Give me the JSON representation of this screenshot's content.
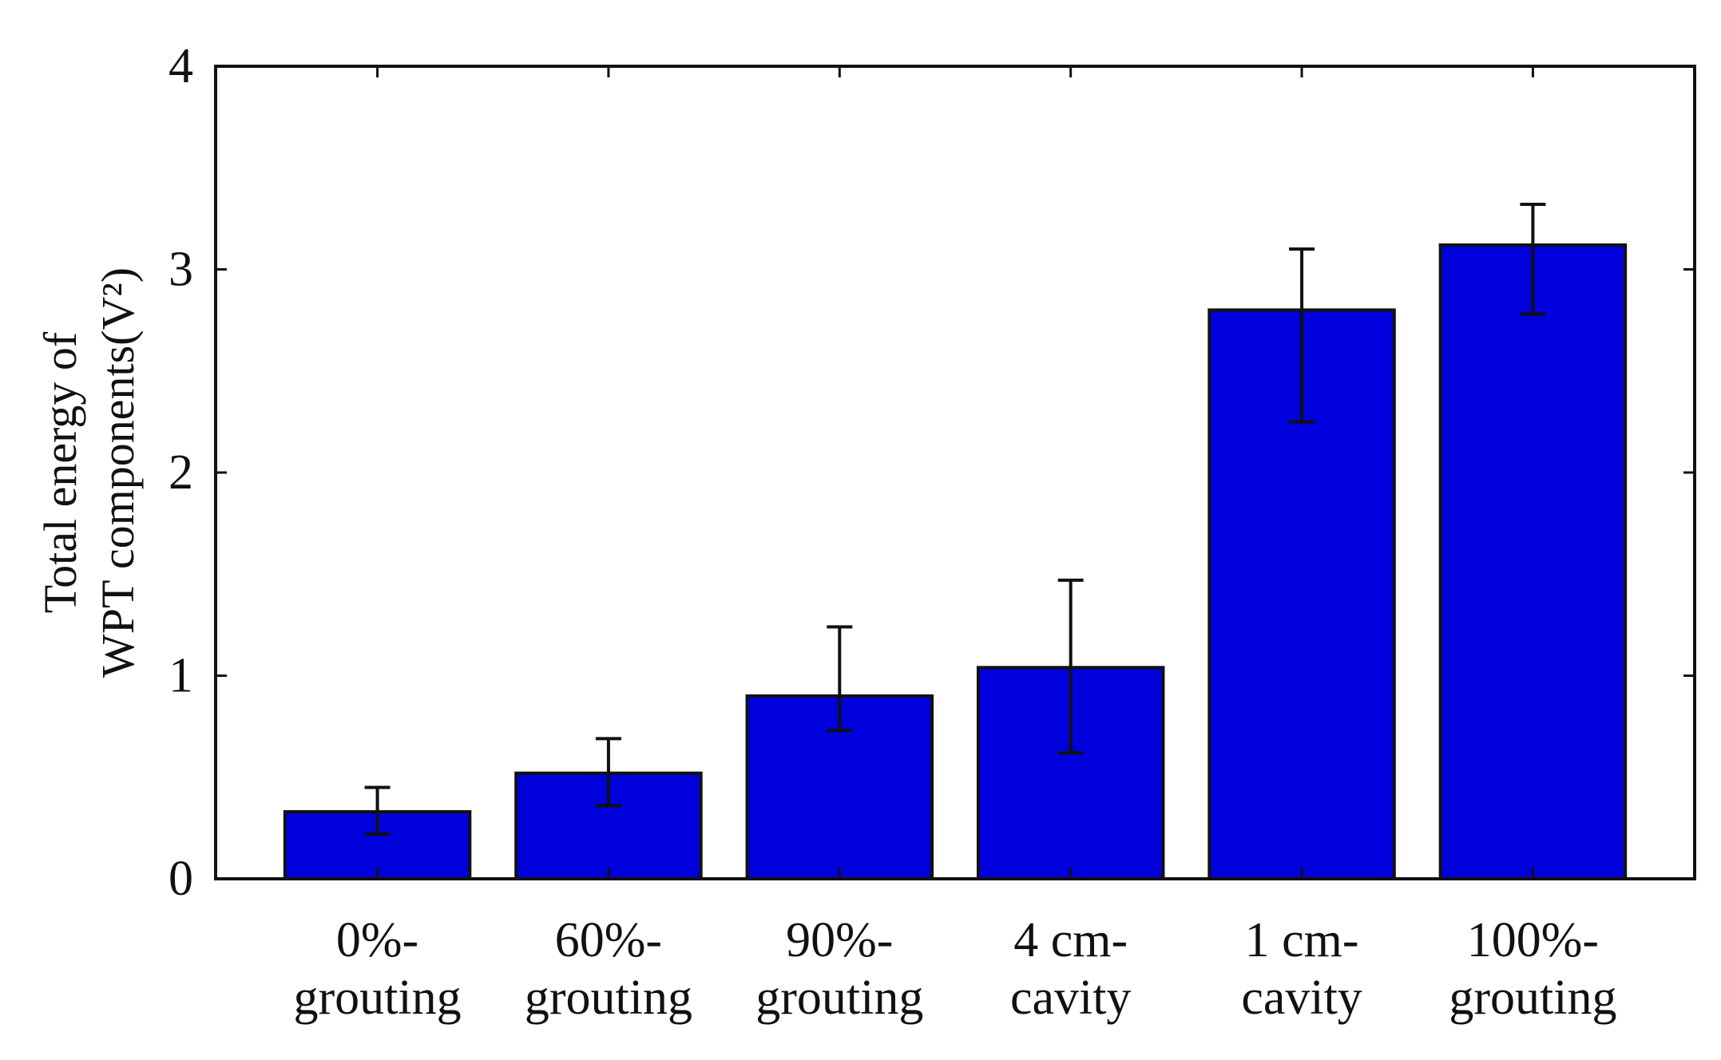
{
  "chart_data": {
    "type": "bar",
    "title": "",
    "xlabel": "",
    "ylabel_lines": [
      "Total energy of",
      "WPT components(V²)"
    ],
    "categories": [
      [
        "0%-",
        "grouting"
      ],
      [
        "60%-",
        "grouting"
      ],
      [
        "90%-",
        "grouting"
      ],
      [
        "4 cm-",
        "cavity"
      ],
      [
        "1 cm-",
        "cavity"
      ],
      [
        "100%-",
        "grouting"
      ]
    ],
    "values": [
      0.33,
      0.52,
      0.9,
      1.04,
      2.8,
      3.12
    ],
    "error_low": [
      0.22,
      0.36,
      0.73,
      0.62,
      2.25,
      2.78
    ],
    "error_high": [
      0.45,
      0.69,
      1.24,
      1.47,
      3.1,
      3.32
    ],
    "ylim": [
      0,
      4
    ],
    "yticks": [
      "0",
      "1",
      "2",
      "3",
      "4"
    ],
    "grid": false,
    "bar_color": "#0000dd",
    "bar_edge_color": "#111111",
    "error_bar_color": "#111111"
  }
}
